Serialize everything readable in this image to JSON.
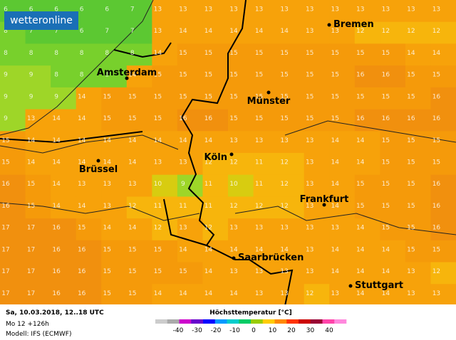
{
  "logo": "wetteronline",
  "cities": [
    {
      "name": "Bremen"
    },
    {
      "name": "Amsterdam"
    },
    {
      "name": "Münster"
    },
    {
      "name": "Köln"
    },
    {
      "name": "Brüssel"
    },
    {
      "name": "Frankfurt"
    },
    {
      "name": "Saarbrücken"
    },
    {
      "name": "Stuttgart"
    }
  ],
  "grid": {
    "rows": [
      [
        6,
        6,
        6,
        6,
        6,
        7,
        13,
        13,
        13,
        13,
        13,
        13,
        13,
        13,
        13,
        13,
        13,
        13
      ],
      [
        8,
        7,
        7,
        6,
        7,
        7,
        13,
        14,
        14,
        14,
        14,
        14,
        13,
        13,
        12,
        12,
        12,
        12
      ],
      [
        8,
        8,
        8,
        8,
        8,
        8,
        14,
        15,
        15,
        15,
        15,
        15,
        15,
        15,
        15,
        15,
        14,
        14
      ],
      [
        9,
        9,
        8,
        8,
        8,
        14,
        15,
        15,
        15,
        15,
        15,
        15,
        15,
        15,
        16,
        16,
        15,
        15
      ],
      [
        9,
        9,
        9,
        14,
        15,
        15,
        15,
        15,
        15,
        15,
        15,
        15,
        15,
        15,
        15,
        15,
        15,
        16
      ],
      [
        9,
        13,
        14,
        14,
        15,
        15,
        15,
        16,
        16,
        15,
        15,
        15,
        15,
        15,
        16,
        16,
        16,
        16
      ],
      [
        15,
        14,
        14,
        14,
        14,
        14,
        14,
        14,
        14,
        13,
        13,
        13,
        13,
        14,
        14,
        15,
        15,
        15
      ],
      [
        15,
        14,
        14,
        14,
        14,
        14,
        13,
        13,
        12,
        12,
        11,
        12,
        13,
        14,
        14,
        15,
        15,
        15
      ],
      [
        16,
        15,
        14,
        13,
        13,
        13,
        10,
        9,
        11,
        10,
        11,
        12,
        13,
        14,
        15,
        15,
        15,
        16
      ],
      [
        16,
        15,
        14,
        14,
        13,
        12,
        11,
        11,
        11,
        12,
        12,
        12,
        13,
        14,
        15,
        15,
        15,
        16
      ],
      [
        17,
        17,
        16,
        15,
        14,
        14,
        12,
        13,
        12,
        13,
        13,
        13,
        13,
        13,
        14,
        15,
        15,
        16
      ],
      [
        17,
        17,
        16,
        16,
        15,
        15,
        15,
        14,
        14,
        14,
        14,
        14,
        13,
        14,
        14,
        14,
        15,
        15
      ],
      [
        17,
        17,
        16,
        16,
        15,
        15,
        15,
        15,
        14,
        13,
        13,
        13,
        13,
        14,
        14,
        14,
        13,
        12
      ],
      [
        17,
        17,
        16,
        16,
        15,
        15,
        14,
        14,
        14,
        14,
        13,
        13,
        12,
        13,
        14,
        14,
        13,
        13
      ]
    ]
  },
  "footer": {
    "date": "Sa, 10.03.2018, 12..18 UTC",
    "run": "Mo 12 +126h",
    "model": "Modell: IFS (ECMWF)",
    "legend_title": "Höchsttemperatur [°C]",
    "legend_ticks": [
      -40,
      -30,
      -20,
      -10,
      0,
      10,
      20,
      30,
      40
    ]
  }
}
